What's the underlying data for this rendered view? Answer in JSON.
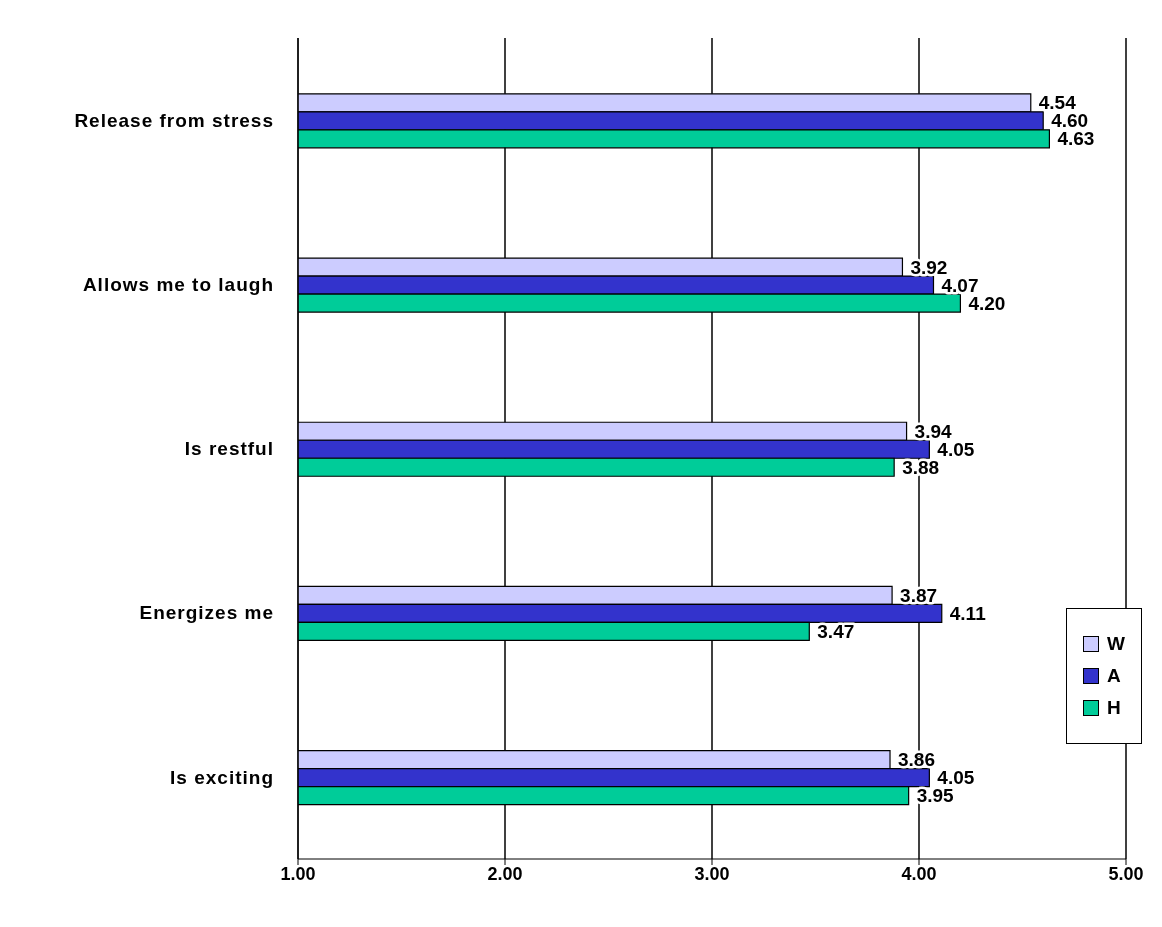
{
  "chart_data": {
    "type": "bar",
    "orientation": "horizontal",
    "categories": [
      "Release from stress",
      "Allows me to laugh",
      "Is restful",
      "Energizes me",
      "Is exciting"
    ],
    "series": [
      {
        "name": "W",
        "color": "#ccccff",
        "values": [
          4.54,
          3.92,
          3.94,
          3.87,
          3.86
        ],
        "value_labels": [
          "4.54",
          "3.92",
          "3.94",
          "3.87",
          "3.86"
        ]
      },
      {
        "name": "A",
        "color": "#3333cc",
        "values": [
          4.6,
          4.07,
          4.05,
          4.11,
          4.05
        ],
        "value_labels": [
          "4.60",
          "4.07",
          "4.05",
          "4.11",
          "4.05"
        ]
      },
      {
        "name": "H",
        "color": "#00cc99",
        "values": [
          4.63,
          4.2,
          3.88,
          3.47,
          3.95
        ],
        "value_labels": [
          "4.63",
          "4.20",
          "3.88",
          "3.47",
          "3.95"
        ]
      }
    ],
    "xlim": [
      1,
      5
    ],
    "xticks": [
      {
        "value": 1,
        "label": "1.00"
      },
      {
        "value": 2,
        "label": "2.00"
      },
      {
        "value": 3,
        "label": "3.00"
      },
      {
        "value": 4,
        "label": "4.00"
      },
      {
        "value": 5,
        "label": "5.00"
      }
    ],
    "grid": "x",
    "legend": "right"
  }
}
